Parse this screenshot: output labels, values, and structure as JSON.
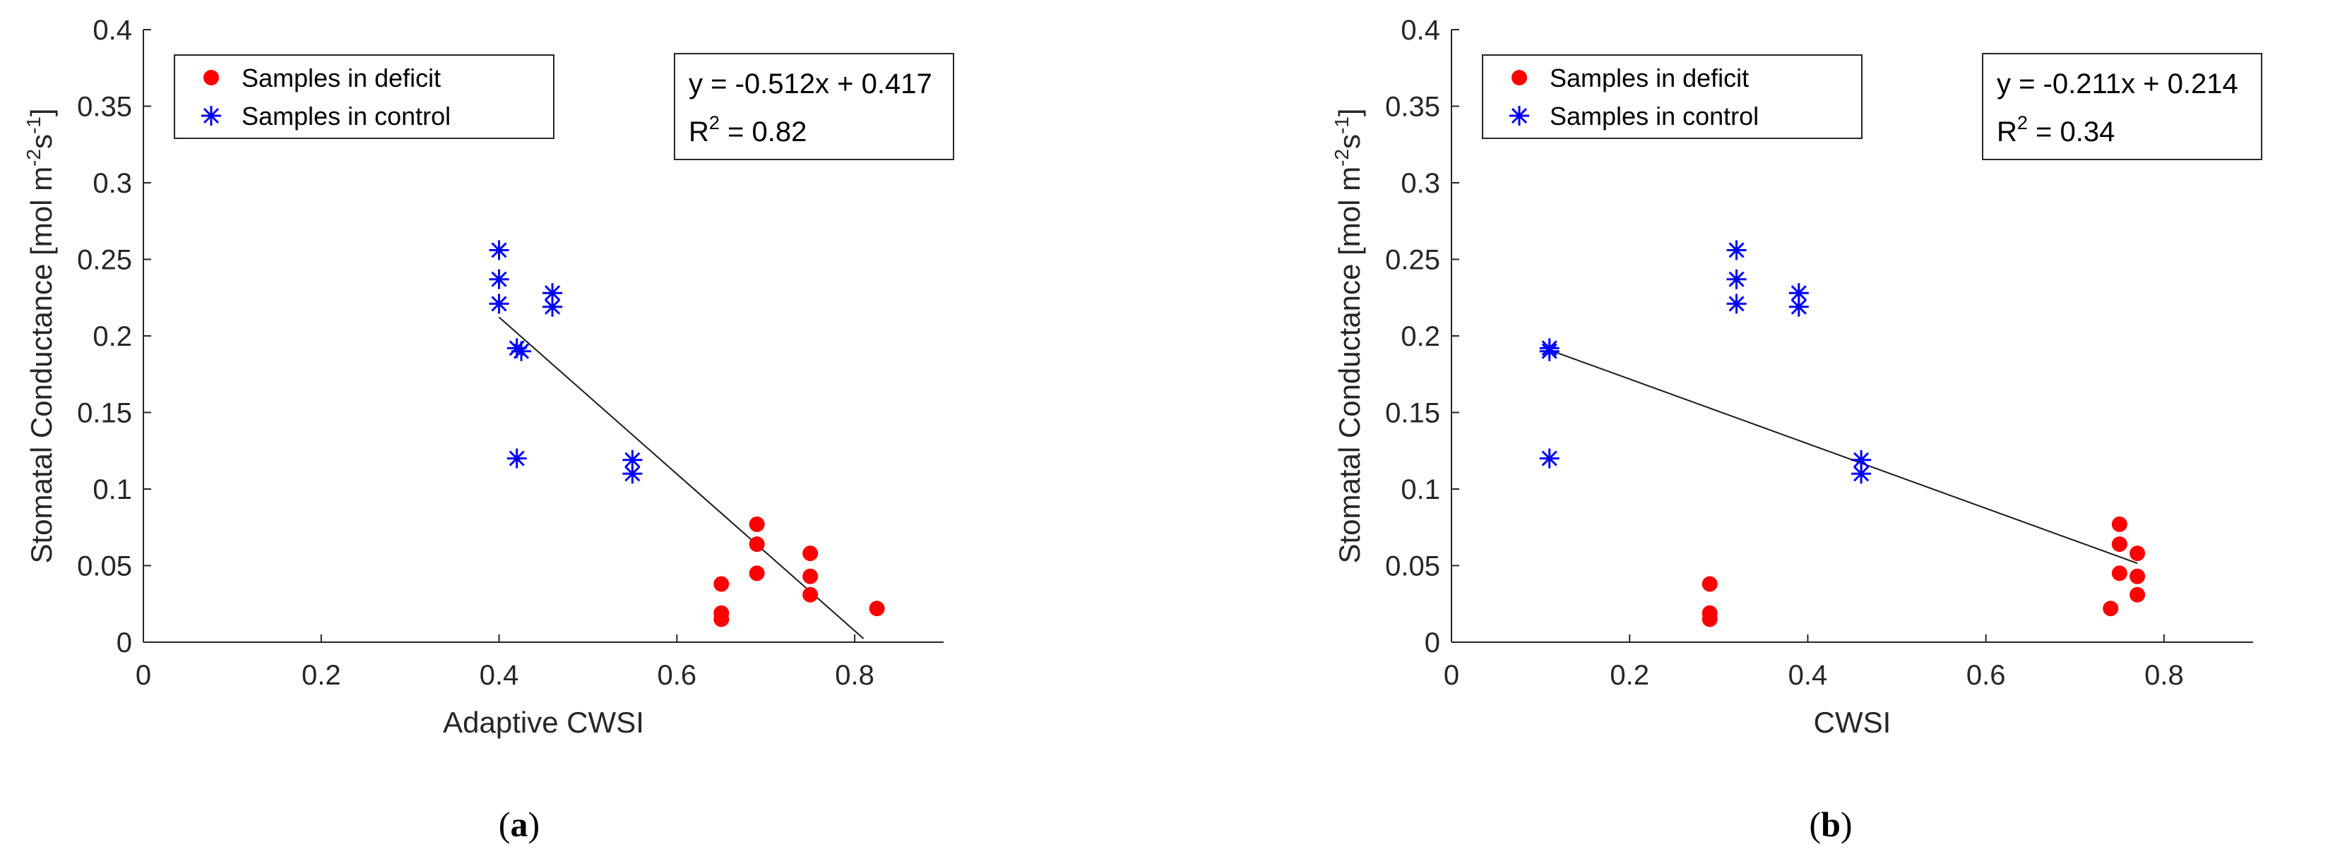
{
  "chart_data": [
    {
      "type": "scatter",
      "panel_label": "(a)",
      "xlabel": "Adaptive CWSI",
      "ylabel": "Stomatal Conductance [mol m-2s-1]",
      "xlim": [
        0,
        0.9
      ],
      "ylim": [
        0,
        0.4
      ],
      "xticks": [
        0,
        0.2,
        0.4,
        0.6,
        0.8
      ],
      "xtick_labels": [
        "0",
        "0.2",
        "0.4",
        "0.6",
        "0.8"
      ],
      "yticks": [
        0,
        0.05,
        0.1,
        0.15,
        0.2,
        0.25,
        0.3,
        0.35,
        0.4
      ],
      "ytick_labels": [
        "0",
        "0.05",
        "0.1",
        "0.15",
        "0.2",
        "0.25",
        "0.3",
        "0.35",
        "0.4"
      ],
      "legend": {
        "position": "top-left",
        "entries": [
          "Samples in deficit",
          "Samples in control"
        ]
      },
      "annotation": {
        "equation": "y = -0.512x + 0.417",
        "r2_prefix": "R",
        "r2_sup": "2",
        "r2_rest": " = 0.82"
      },
      "fit": {
        "slope": -0.512,
        "intercept": 0.417,
        "x_range": [
          0.4,
          0.81
        ]
      },
      "series": [
        {
          "name": "Samples in deficit",
          "marker": "dot",
          "color": "#ff0000",
          "points": [
            [
              0.65,
              0.038
            ],
            [
              0.65,
              0.019
            ],
            [
              0.65,
              0.015
            ],
            [
              0.69,
              0.077
            ],
            [
              0.69,
              0.064
            ],
            [
              0.69,
              0.045
            ],
            [
              0.75,
              0.058
            ],
            [
              0.75,
              0.043
            ],
            [
              0.75,
              0.031
            ],
            [
              0.825,
              0.022
            ]
          ]
        },
        {
          "name": "Samples in control",
          "marker": "asterisk",
          "color": "#0000ff",
          "points": [
            [
              0.4,
              0.256
            ],
            [
              0.4,
              0.237
            ],
            [
              0.4,
              0.221
            ],
            [
              0.46,
              0.228
            ],
            [
              0.46,
              0.219
            ],
            [
              0.42,
              0.192
            ],
            [
              0.425,
              0.19
            ],
            [
              0.42,
              0.12
            ],
            [
              0.55,
              0.119
            ],
            [
              0.55,
              0.11
            ]
          ]
        }
      ]
    },
    {
      "type": "scatter",
      "panel_label": "(b)",
      "xlabel": "CWSI",
      "ylabel": "Stomatal Conductance [mol m-2s-1]",
      "xlim": [
        0,
        0.9
      ],
      "ylim": [
        0,
        0.4
      ],
      "xticks": [
        0,
        0.2,
        0.4,
        0.6,
        0.8
      ],
      "xtick_labels": [
        "0",
        "0.2",
        "0.4",
        "0.6",
        "0.8"
      ],
      "yticks": [
        0,
        0.05,
        0.1,
        0.15,
        0.2,
        0.25,
        0.3,
        0.35,
        0.4
      ],
      "ytick_labels": [
        "0",
        "0.05",
        "0.1",
        "0.15",
        "0.2",
        "0.25",
        "0.3",
        "0.35",
        "0.4"
      ],
      "legend": {
        "position": "top-left",
        "entries": [
          "Samples in deficit",
          "Samples in control"
        ]
      },
      "annotation": {
        "equation": "y = -0.211x + 0.214",
        "r2_prefix": "R",
        "r2_sup": "2",
        "r2_rest": " = 0.34"
      },
      "fit": {
        "slope": -0.211,
        "intercept": 0.214,
        "x_range": [
          0.11,
          0.77
        ]
      },
      "series": [
        {
          "name": "Samples in deficit",
          "marker": "dot",
          "color": "#ff0000",
          "points": [
            [
              0.29,
              0.038
            ],
            [
              0.29,
              0.019
            ],
            [
              0.29,
              0.015
            ],
            [
              0.75,
              0.077
            ],
            [
              0.75,
              0.064
            ],
            [
              0.75,
              0.045
            ],
            [
              0.77,
              0.058
            ],
            [
              0.77,
              0.043
            ],
            [
              0.77,
              0.031
            ],
            [
              0.74,
              0.022
            ]
          ]
        },
        {
          "name": "Samples in control",
          "marker": "asterisk",
          "color": "#0000ff",
          "points": [
            [
              0.32,
              0.256
            ],
            [
              0.32,
              0.237
            ],
            [
              0.32,
              0.221
            ],
            [
              0.39,
              0.228
            ],
            [
              0.39,
              0.219
            ],
            [
              0.11,
              0.192
            ],
            [
              0.11,
              0.19
            ],
            [
              0.11,
              0.12
            ],
            [
              0.46,
              0.119
            ],
            [
              0.46,
              0.11
            ]
          ]
        }
      ]
    }
  ]
}
